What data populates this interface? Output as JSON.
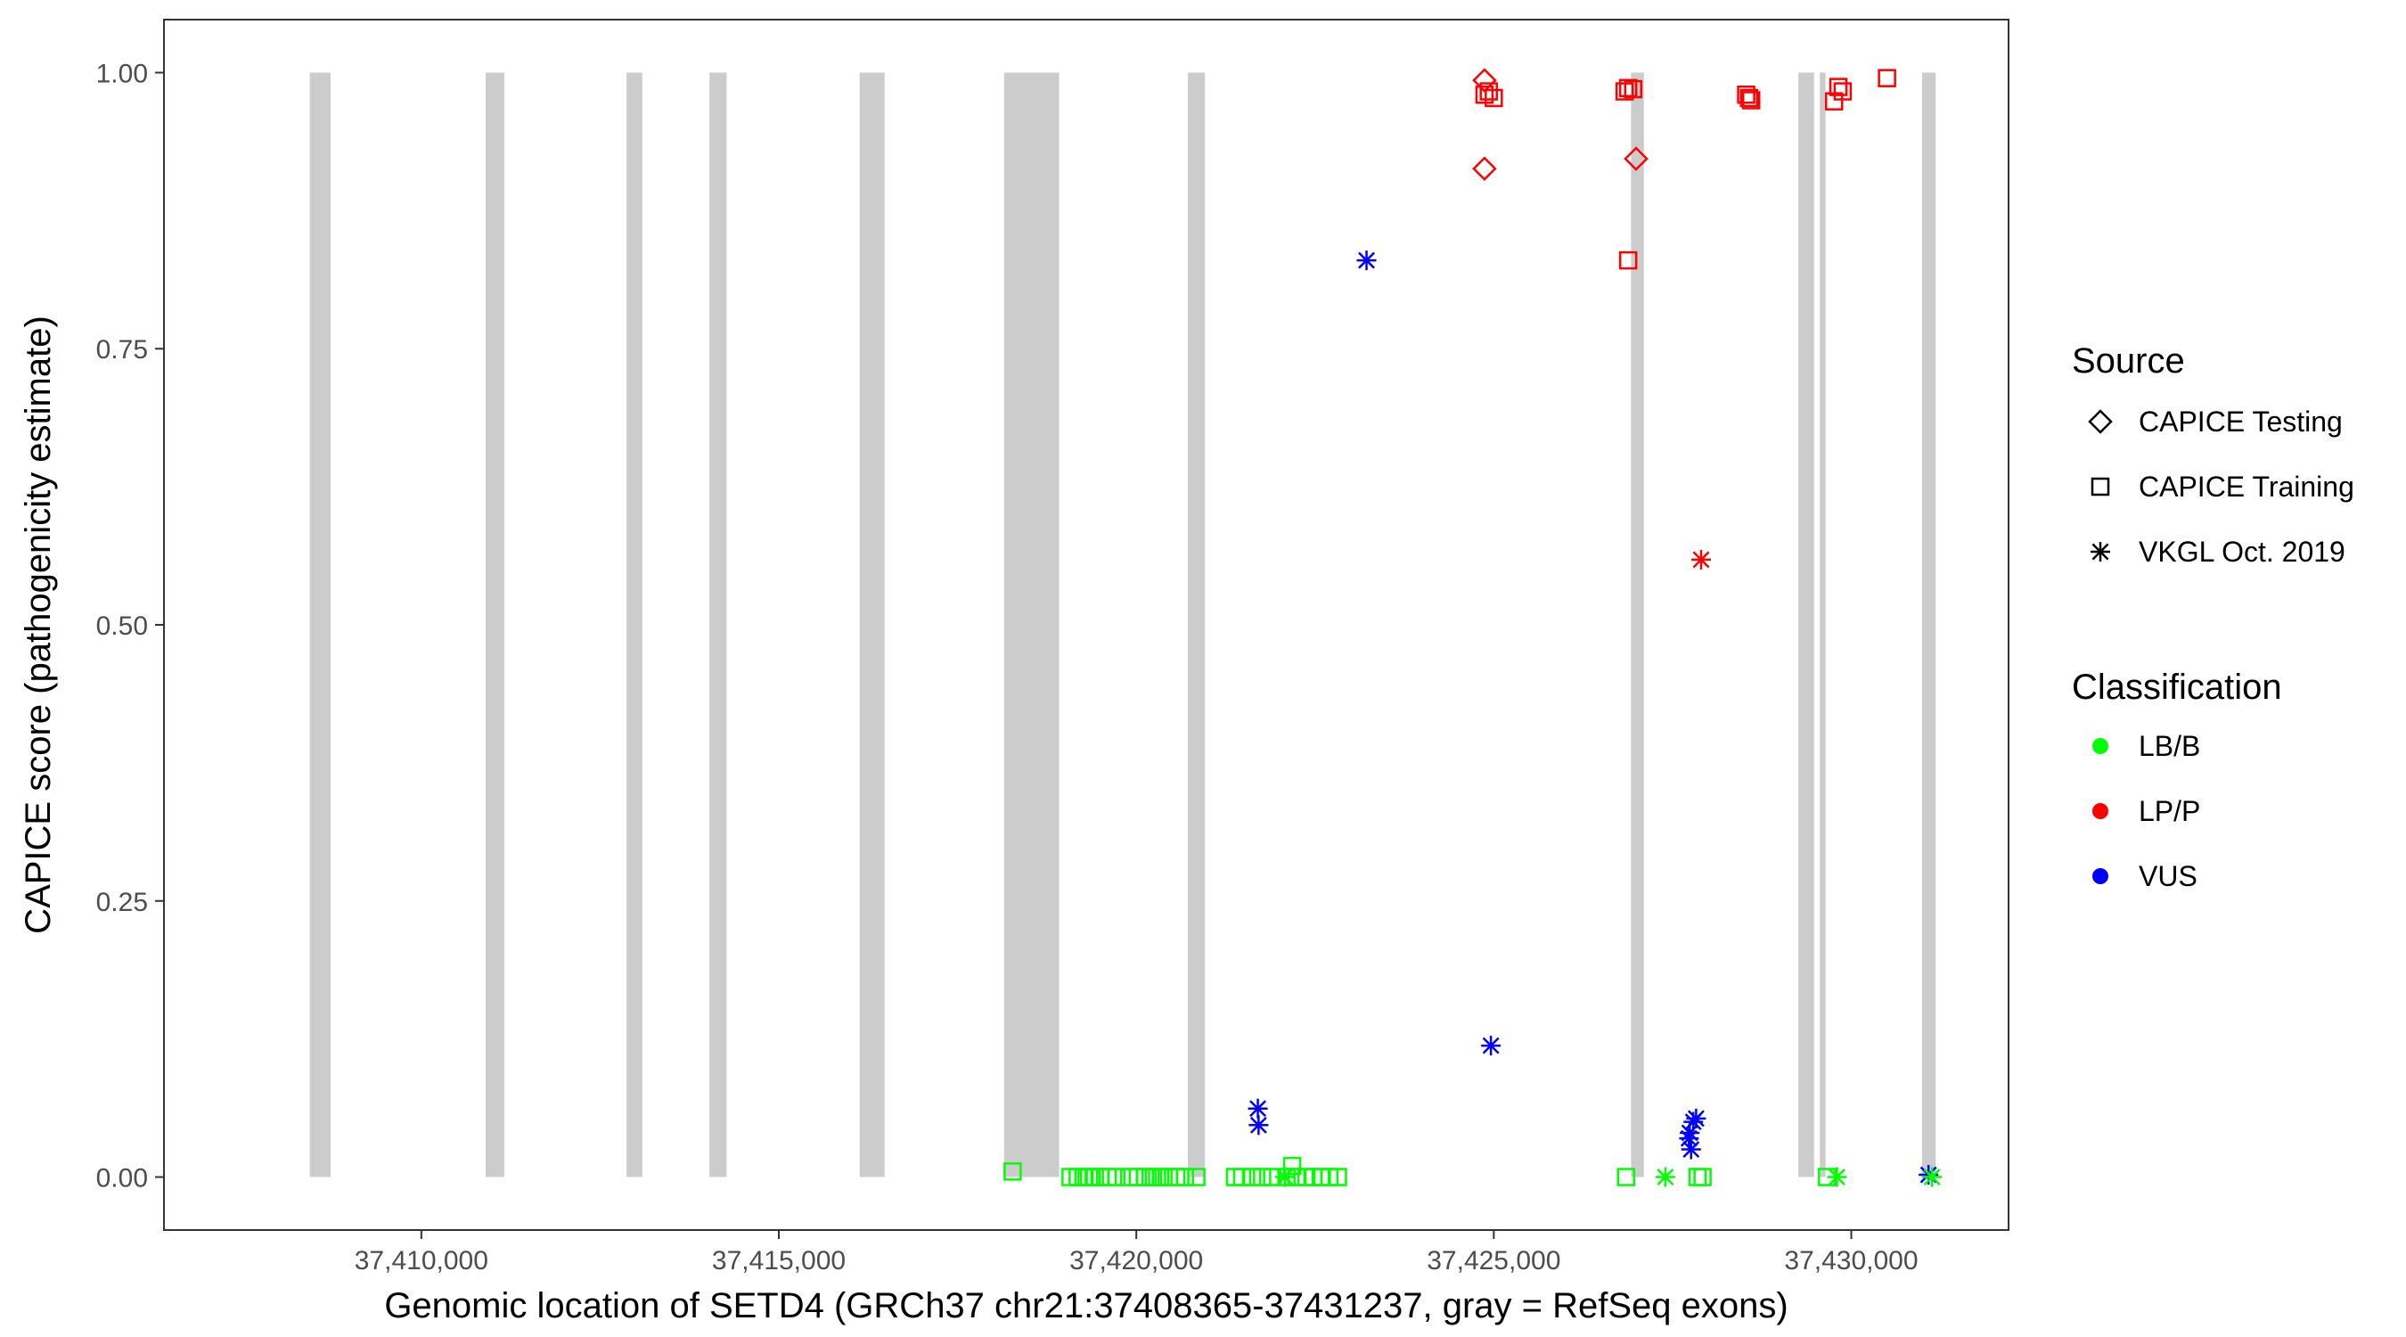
{
  "chart_data": {
    "type": "scatter",
    "xlabel": "Genomic location of SETD4 (GRCh37 chr21:37408365-37431237, gray = RefSeq exons)",
    "ylabel": "CAPICE score (pathogenicity estimate)",
    "xlim": [
      37406400,
      37432200
    ],
    "ylim": [
      -0.048,
      1.048
    ],
    "x_ticks": [
      37410000,
      37415000,
      37420000,
      37425000,
      37430000
    ],
    "x_tick_labels": [
      "37,410,000",
      "37,415,000",
      "37,420,000",
      "37,425,000",
      "37,430,000"
    ],
    "y_ticks": [
      0,
      0.25,
      0.5,
      0.75,
      1
    ],
    "y_tick_labels": [
      "0.00",
      "0.25",
      "0.50",
      "0.75",
      "1.00"
    ],
    "grid": false,
    "exons": [
      [
        37408440,
        37408730
      ],
      [
        37410900,
        37411160
      ],
      [
        37412870,
        37413090
      ],
      [
        37414030,
        37414270
      ],
      [
        37416130,
        37416480
      ],
      [
        37418150,
        37418920
      ],
      [
        37420720,
        37420960
      ],
      [
        37426920,
        37427100
      ],
      [
        37429260,
        37429480
      ],
      [
        37429560,
        37429640
      ],
      [
        37430990,
        37431180
      ]
    ],
    "exon_color": "#cccccc",
    "colors": {
      "LB/B": "#00ff00",
      "LP/P": "#ff0000",
      "VUS": "#0000ff"
    },
    "legend": {
      "position": "right",
      "source_title": "Source",
      "source_items": [
        {
          "label": "CAPICE Testing",
          "shape": "diamond"
        },
        {
          "label": "CAPICE Training",
          "shape": "square"
        },
        {
          "label": "VKGL Oct. 2019",
          "shape": "asterisk"
        }
      ],
      "classification_title": "Classification",
      "classification_items": [
        {
          "label": "LB/B",
          "color": "#00ff00"
        },
        {
          "label": "LP/P",
          "color": "#ff0000"
        },
        {
          "label": "VUS",
          "color": "#0000ff"
        }
      ]
    },
    "series": [
      {
        "source": "CAPICE Training",
        "classification": "LB/B",
        "shape": "square",
        "points": [
          [
            37418270,
            0.005
          ],
          [
            37419080,
            0.0
          ],
          [
            37419180,
            0.0
          ],
          [
            37419260,
            0.0
          ],
          [
            37419340,
            0.0
          ],
          [
            37419420,
            0.0
          ],
          [
            37419500,
            0.0
          ],
          [
            37419600,
            0.0
          ],
          [
            37419720,
            0.0
          ],
          [
            37419900,
            0.0
          ],
          [
            37420020,
            0.0
          ],
          [
            37420120,
            0.0
          ],
          [
            37420200,
            0.0
          ],
          [
            37420290,
            0.0
          ],
          [
            37420380,
            0.0
          ],
          [
            37420460,
            0.0
          ],
          [
            37420560,
            0.0
          ],
          [
            37420680,
            0.0
          ],
          [
            37420840,
            0.0
          ],
          [
            37421380,
            0.0
          ],
          [
            37421480,
            0.0
          ],
          [
            37421620,
            0.0
          ],
          [
            37421760,
            0.0
          ],
          [
            37421900,
            0.0
          ],
          [
            37422100,
            0.0
          ],
          [
            37422240,
            0.0
          ],
          [
            37422380,
            0.0
          ],
          [
            37422480,
            0.0
          ],
          [
            37422580,
            0.0
          ],
          [
            37422700,
            0.0
          ],
          [
            37422820,
            0.0
          ],
          [
            37422180,
            0.01
          ],
          [
            37426850,
            0.0
          ],
          [
            37427850,
            0.0
          ],
          [
            37427920,
            0.0
          ],
          [
            37429660,
            0.0
          ]
        ]
      },
      {
        "source": "CAPICE Training",
        "classification": "LP/P",
        "shape": "square",
        "points": [
          [
            37424870,
            0.98
          ],
          [
            37424930,
            0.983
          ],
          [
            37425000,
            0.977
          ],
          [
            37426830,
            0.983
          ],
          [
            37426880,
            0.986
          ],
          [
            37426950,
            0.985
          ],
          [
            37426880,
            0.83
          ],
          [
            37428530,
            0.98
          ],
          [
            37428570,
            0.977
          ],
          [
            37428600,
            0.975
          ],
          [
            37429760,
            0.974
          ],
          [
            37429820,
            0.987
          ],
          [
            37429880,
            0.983
          ],
          [
            37430500,
            0.995
          ]
        ]
      },
      {
        "source": "CAPICE Testing",
        "classification": "LP/P",
        "shape": "diamond",
        "points": [
          [
            37424870,
            0.993
          ],
          [
            37424870,
            0.913
          ],
          [
            37426990,
            0.922
          ]
        ]
      },
      {
        "source": "VKGL Oct. 2019",
        "classification": "VUS",
        "shape": "asterisk",
        "points": [
          [
            37421700,
            0.062
          ],
          [
            37421710,
            0.047
          ],
          [
            37423220,
            0.83
          ],
          [
            37424960,
            0.119
          ],
          [
            37427740,
            0.04
          ],
          [
            37427790,
            0.05
          ],
          [
            37427830,
            0.053
          ],
          [
            37427730,
            0.035
          ],
          [
            37427760,
            0.025
          ],
          [
            37431080,
            0.002
          ]
        ]
      },
      {
        "source": "VKGL Oct. 2019",
        "classification": "LB/B",
        "shape": "asterisk",
        "points": [
          [
            37422080,
            0.0
          ],
          [
            37427400,
            0.0
          ],
          [
            37429800,
            0.0
          ],
          [
            37431130,
            0.0
          ]
        ]
      },
      {
        "source": "VKGL Oct. 2019",
        "classification": "LP/P",
        "shape": "asterisk",
        "points": [
          [
            37427900,
            0.559
          ]
        ]
      }
    ]
  }
}
